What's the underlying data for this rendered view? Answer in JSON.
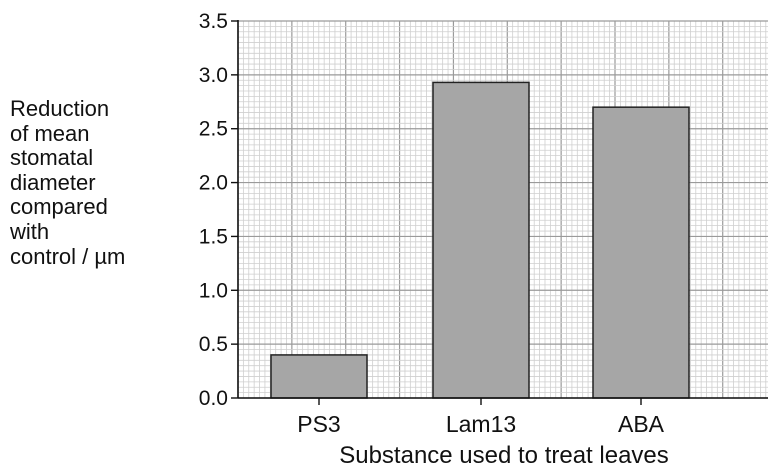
{
  "chart_data": {
    "type": "bar",
    "categories": [
      "PS3",
      "Lam13",
      "ABA"
    ],
    "values": [
      0.4,
      2.93,
      2.7
    ],
    "ylabel_lines": [
      "Reduction",
      "of mean",
      "stomatal",
      "diameter",
      "compared",
      "with",
      "control / µm"
    ],
    "xlabel": "Substance used to treat leaves",
    "ylim": [
      0,
      3.5
    ],
    "yticks": [
      "0.0",
      "0.5",
      "1.0",
      "1.5",
      "2.0",
      "2.5",
      "3.0",
      "3.5"
    ],
    "grid": "graph-paper",
    "colors": {
      "bar": "#a6a6a6",
      "bar_edge": "#222222",
      "grid_major": "#9a9a9a",
      "grid_minor": "#cfcfcf",
      "axis": "#111111"
    }
  }
}
